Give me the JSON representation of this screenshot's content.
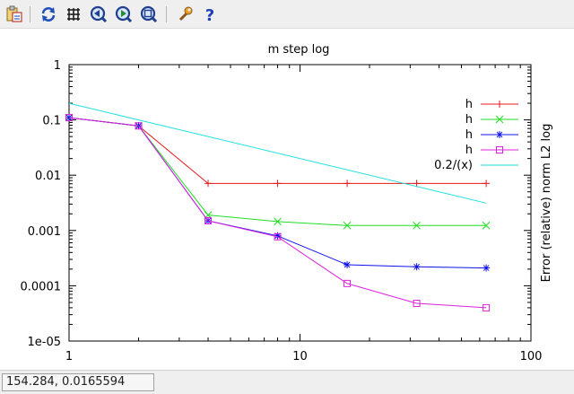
{
  "toolbar": {
    "buttons": [
      {
        "name": "copy-clipboard-icon"
      },
      {
        "name": "replot-icon"
      },
      {
        "name": "grid-icon"
      },
      {
        "name": "zoom-previous-icon"
      },
      {
        "name": "zoom-next-icon"
      },
      {
        "name": "autoscale-icon"
      },
      {
        "name": "options-icon"
      },
      {
        "name": "help-icon",
        "glyph": "?"
      }
    ]
  },
  "status": {
    "coords": "154.284,  0.0165594"
  },
  "chart_data": {
    "type": "line",
    "title": "m step log",
    "xlabel": "",
    "ylabel": "Error (relative) norm L2 log",
    "xscale": "log",
    "yscale": "log",
    "xlim": [
      1,
      100
    ],
    "ylim": [
      1e-05,
      1
    ],
    "x_ticks": [
      {
        "value": 1,
        "label": "1"
      },
      {
        "value": 10,
        "label": "10"
      },
      {
        "value": 100,
        "label": "100"
      }
    ],
    "y_ticks": [
      {
        "value": 1,
        "label": "1"
      },
      {
        "value": 0.1,
        "label": "0.1"
      },
      {
        "value": 0.01,
        "label": "0.01"
      },
      {
        "value": 0.001,
        "label": "0.001"
      },
      {
        "value": 0.0001,
        "label": "0.0001"
      },
      {
        "value": 1e-05,
        "label": "1e-05"
      }
    ],
    "grid": false,
    "legend_position": "top-right",
    "series": [
      {
        "name": "h",
        "color": "#e41a1c",
        "marker": "plus",
        "x": [
          1,
          2,
          4,
          8,
          16,
          32,
          64
        ],
        "y": [
          0.11,
          0.078,
          0.0071,
          0.0071,
          0.0071,
          0.0071,
          0.0071
        ]
      },
      {
        "name": "h",
        "color": "#22dd22",
        "marker": "cross",
        "x": [
          1,
          2,
          4,
          8,
          16,
          32,
          64
        ],
        "y": [
          0.11,
          0.078,
          0.0019,
          0.00145,
          0.00123,
          0.00123,
          0.00123
        ]
      },
      {
        "name": "h",
        "color": "#1010ee",
        "marker": "star",
        "x": [
          1,
          2,
          4,
          8,
          16,
          32,
          64
        ],
        "y": [
          0.11,
          0.078,
          0.0015,
          0.0008,
          0.00024,
          0.00022,
          0.00021
        ]
      },
      {
        "name": "h",
        "color": "#dd22dd",
        "marker": "box",
        "x": [
          1,
          2,
          4,
          8,
          16,
          32,
          64
        ],
        "y": [
          0.11,
          0.078,
          0.0015,
          0.00077,
          0.00011,
          4.8e-05,
          4e-05
        ]
      },
      {
        "name": "0.2/(x)",
        "color": "#22e0e0",
        "marker": "none",
        "x": [
          1,
          64
        ],
        "y": [
          0.2,
          0.003125
        ]
      }
    ]
  }
}
